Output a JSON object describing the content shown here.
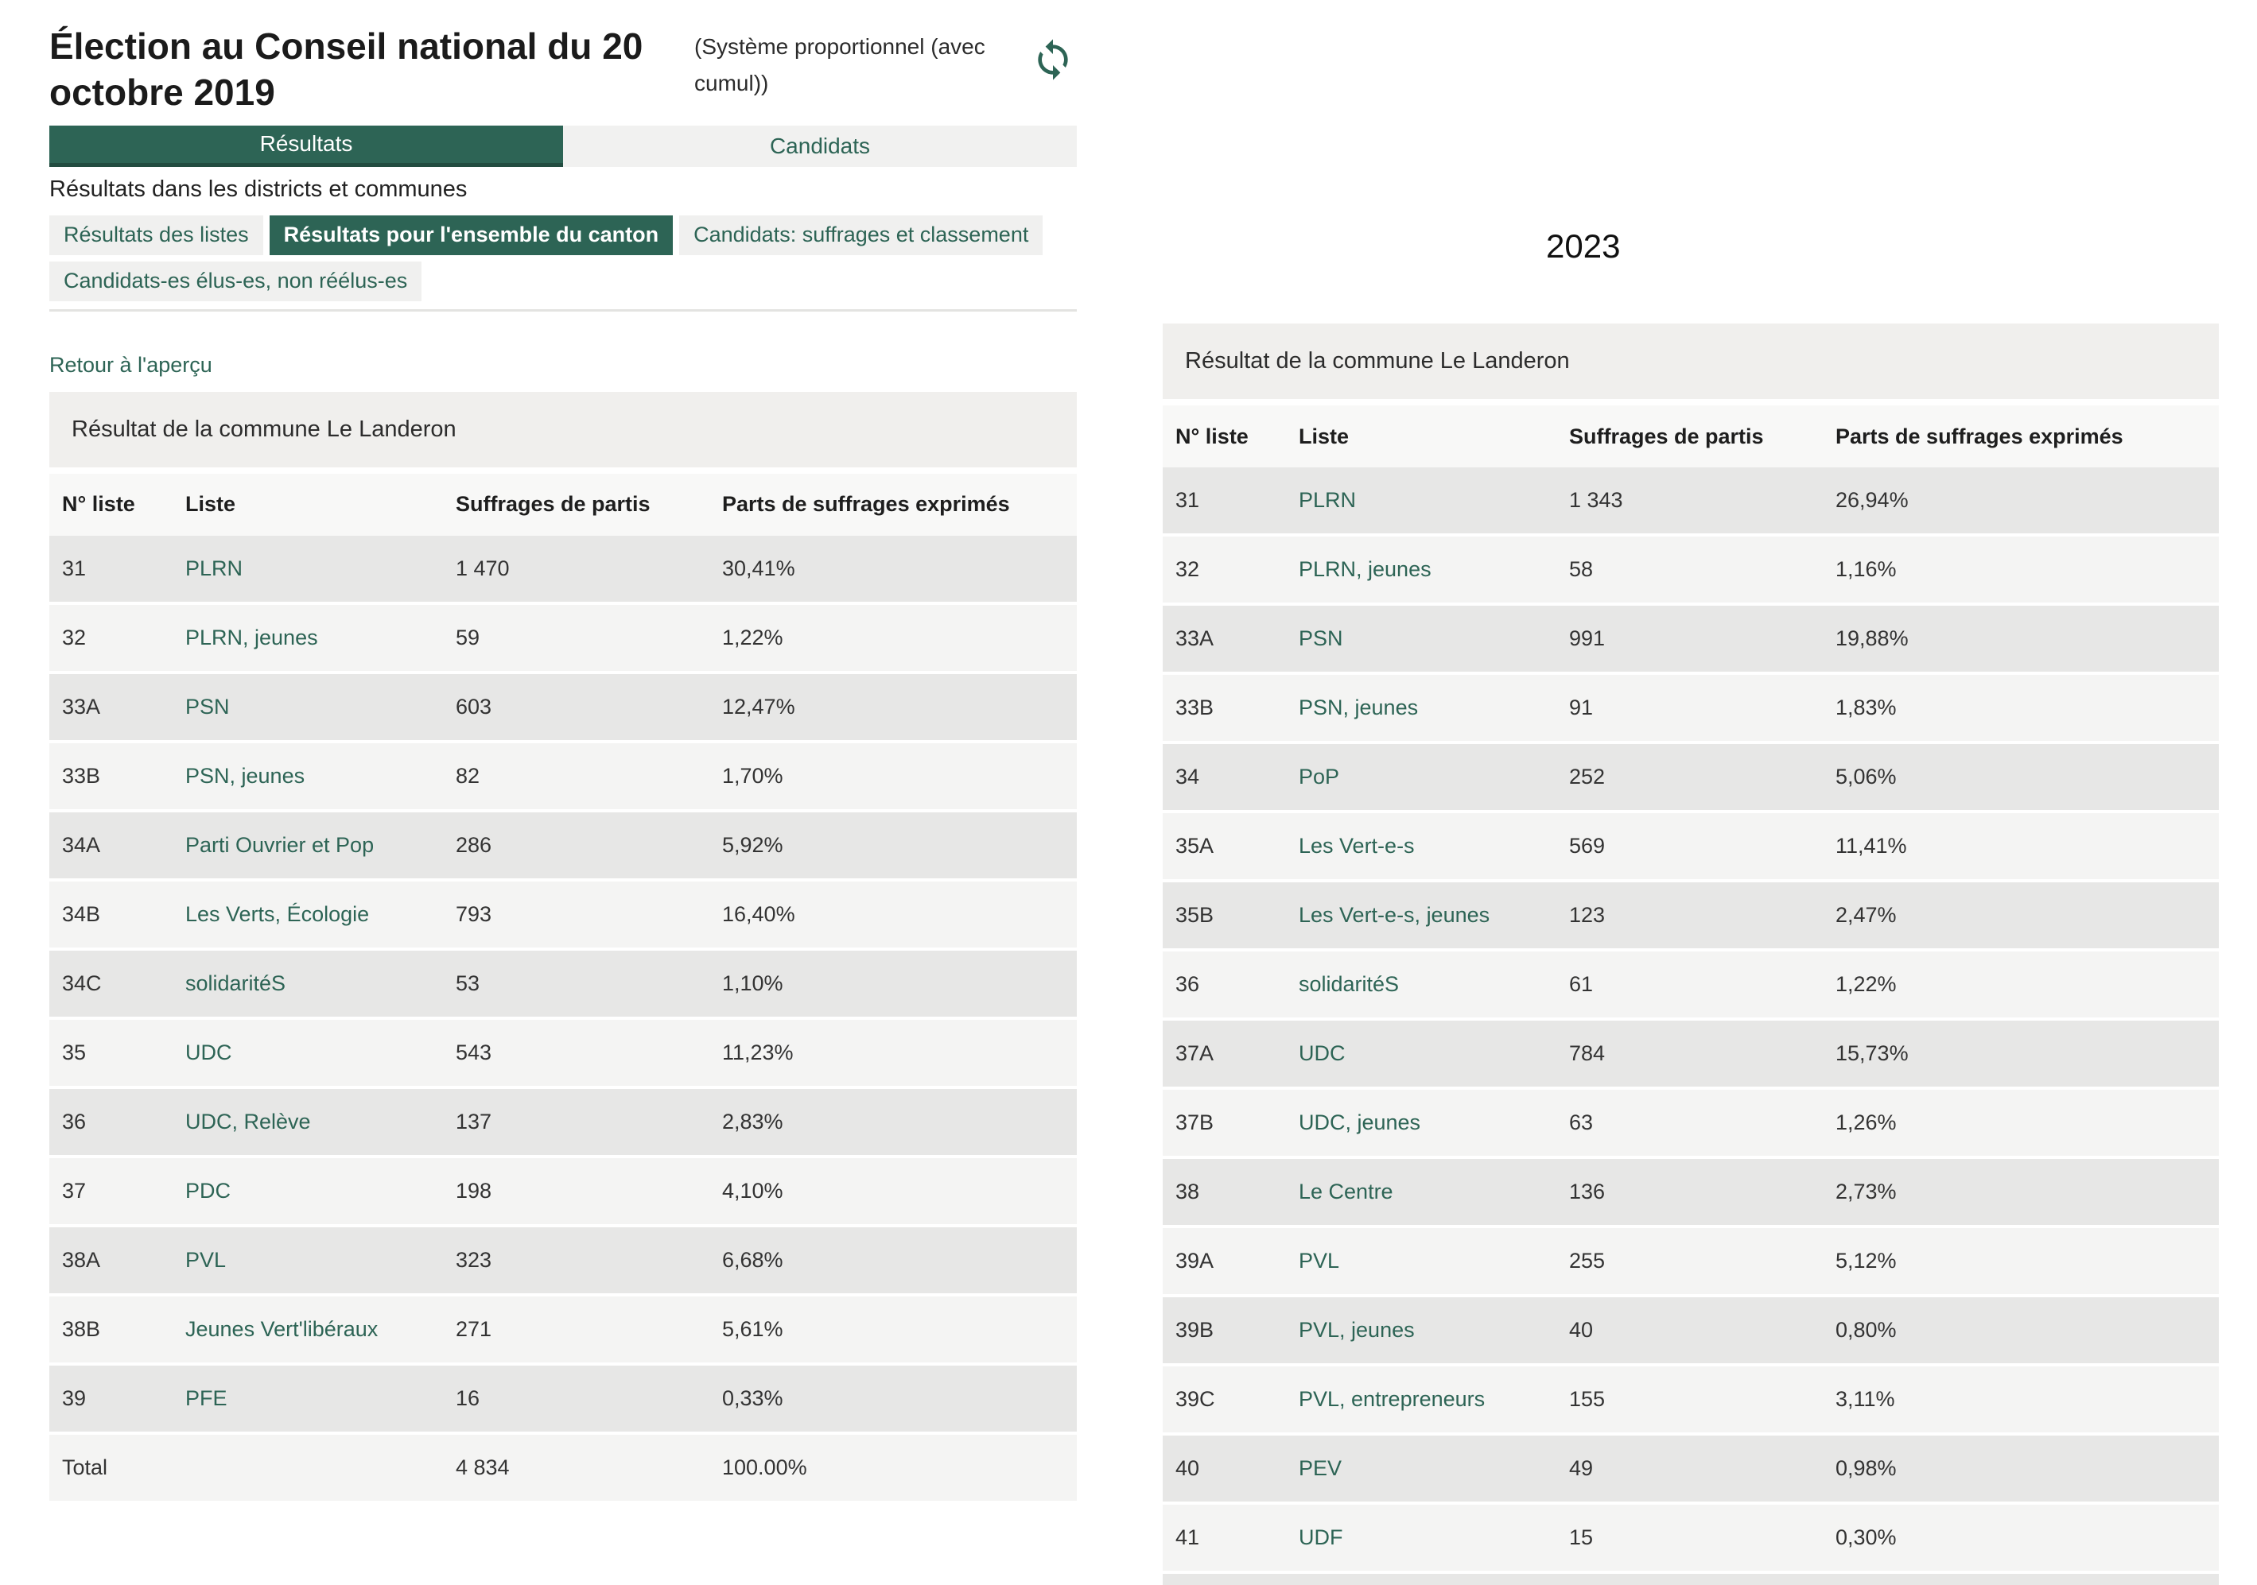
{
  "colors": {
    "accent": "#2d6455",
    "accent_dark": "#224c40",
    "row_dark": "#e7e7e6",
    "row_light": "#f4f4f3"
  },
  "year_label": "2023",
  "left_panel": {
    "title": "Élection au Conseil national du 20 octobre 2019",
    "subtitle": "(Système proportionnel (avec cumul))",
    "refresh_icon": "refresh-icon",
    "tabs": [
      {
        "label": "Résultats",
        "active": true
      },
      {
        "label": "Candidats",
        "active": false
      }
    ],
    "section_label": "Résultats dans les districts et communes",
    "subtabs": [
      {
        "label": "Résultats des listes",
        "active": false
      },
      {
        "label": "Résultats pour l'ensemble du canton",
        "active": true
      },
      {
        "label": "Candidats: suffrages et classement",
        "active": false
      },
      {
        "label": "Candidats-es élus-es, non réélus-es",
        "active": false
      }
    ],
    "back_link": "Retour à l'aperçu"
  },
  "table_2019": {
    "title": "Résultat de la commune Le Landeron",
    "columns": [
      "N° liste",
      "Liste",
      "Suffrages de partis",
      "Parts de suffrages exprimés"
    ],
    "rows": [
      {
        "no": "31",
        "liste": "PLRN",
        "suffrages": "1 470",
        "part": "30,41%"
      },
      {
        "no": "32",
        "liste": "PLRN, jeunes",
        "suffrages": "59",
        "part": "1,22%"
      },
      {
        "no": "33A",
        "liste": "PSN",
        "suffrages": "603",
        "part": "12,47%"
      },
      {
        "no": "33B",
        "liste": "PSN, jeunes",
        "suffrages": "82",
        "part": "1,70%"
      },
      {
        "no": "34A",
        "liste": "Parti Ouvrier et Pop",
        "suffrages": "286",
        "part": "5,92%"
      },
      {
        "no": "34B",
        "liste": "Les Verts, Écologie",
        "suffrages": "793",
        "part": "16,40%"
      },
      {
        "no": "34C",
        "liste": "solidaritéS",
        "suffrages": "53",
        "part": "1,10%"
      },
      {
        "no": "35",
        "liste": "UDC",
        "suffrages": "543",
        "part": "11,23%"
      },
      {
        "no": "36",
        "liste": "UDC, Relève",
        "suffrages": "137",
        "part": "2,83%"
      },
      {
        "no": "37",
        "liste": "PDC",
        "suffrages": "198",
        "part": "4,10%"
      },
      {
        "no": "38A",
        "liste": "PVL",
        "suffrages": "323",
        "part": "6,68%"
      },
      {
        "no": "38B",
        "liste": "Jeunes Vert'libéraux",
        "suffrages": "271",
        "part": "5,61%"
      },
      {
        "no": "39",
        "liste": "PFE",
        "suffrages": "16",
        "part": "0,33%"
      }
    ],
    "total": {
      "label": "Total",
      "suffrages": "4 834",
      "part": "100.00%"
    }
  },
  "table_2023": {
    "title": "Résultat de la commune Le Landeron",
    "columns": [
      "N° liste",
      "Liste",
      "Suffrages de partis",
      "Parts de suffrages exprimés"
    ],
    "rows": [
      {
        "no": "31",
        "liste": "PLRN",
        "suffrages": "1 343",
        "part": "26,94%"
      },
      {
        "no": "32",
        "liste": "PLRN, jeunes",
        "suffrages": "58",
        "part": "1,16%"
      },
      {
        "no": "33A",
        "liste": "PSN",
        "suffrages": "991",
        "part": "19,88%"
      },
      {
        "no": "33B",
        "liste": "PSN, jeunes",
        "suffrages": "91",
        "part": "1,83%"
      },
      {
        "no": "34",
        "liste": "PoP",
        "suffrages": "252",
        "part": "5,06%"
      },
      {
        "no": "35A",
        "liste": "Les Vert-e-s",
        "suffrages": "569",
        "part": "11,41%"
      },
      {
        "no": "35B",
        "liste": "Les Vert-e-s, jeunes",
        "suffrages": "123",
        "part": "2,47%"
      },
      {
        "no": "36",
        "liste": "solidaritéS",
        "suffrages": "61",
        "part": "1,22%"
      },
      {
        "no": "37A",
        "liste": "UDC",
        "suffrages": "784",
        "part": "15,73%"
      },
      {
        "no": "37B",
        "liste": "UDC, jeunes",
        "suffrages": "63",
        "part": "1,26%"
      },
      {
        "no": "38",
        "liste": "Le Centre",
        "suffrages": "136",
        "part": "2,73%"
      },
      {
        "no": "39A",
        "liste": "PVL",
        "suffrages": "255",
        "part": "5,12%"
      },
      {
        "no": "39B",
        "liste": "PVL, jeunes",
        "suffrages": "40",
        "part": "0,80%"
      },
      {
        "no": "39C",
        "liste": "PVL, entrepreneurs",
        "suffrages": "155",
        "part": "3,11%"
      },
      {
        "no": "40",
        "liste": "PEV",
        "suffrages": "49",
        "part": "0,98%"
      },
      {
        "no": "41",
        "liste": "UDF",
        "suffrages": "15",
        "part": "0,30%"
      }
    ],
    "truncated": true
  }
}
